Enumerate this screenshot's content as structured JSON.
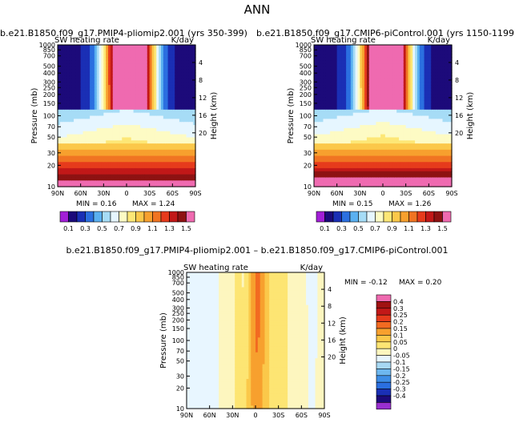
{
  "page_title": "ANN",
  "palette": {
    "base": [
      "#a21fd6",
      "#1c0a7a",
      "#1a2fb5",
      "#2b6fe0",
      "#5ab0f0",
      "#a6dcf6",
      "#e6f6ff",
      "#fdfbc4",
      "#fde776",
      "#fbc84a",
      "#f7a02e",
      "#f07422",
      "#e63b1c",
      "#c21818",
      "#8e1212",
      "#ef6ab0"
    ],
    "diff": [
      "#9a2fd0",
      "#1c0a7a",
      "#1a2fb5",
      "#2b6fe0",
      "#3d8de6",
      "#6db7ef",
      "#a7d8f3",
      "#e8f6ff",
      "#fdf6bf",
      "#fde573",
      "#fbc84a",
      "#f7a02e",
      "#f26a21",
      "#e63b1c",
      "#c21818",
      "#a01212",
      "#ef6ab0"
    ]
  },
  "chart_data": [
    {
      "type": "heatmap",
      "title": "b.e21.B1850.f09_g17.PMIP4-pliomip2.001 (yrs 350-399)",
      "left_label": "SW heating rate",
      "right_label": "K/day",
      "ylabel": "Pressure (mb)",
      "ylabel_right": "Height (km)",
      "x_ticks": [
        "90N",
        "60N",
        "30N",
        "0",
        "30S",
        "60S",
        "90S"
      ],
      "y_ticks": [
        "1000",
        "850",
        "700",
        "500",
        "400",
        "300",
        "250",
        "200",
        "150",
        "100",
        "70",
        "50",
        "30",
        "20",
        "10"
      ],
      "y_ticks_right": [
        "4",
        "8",
        "12",
        "16",
        "20"
      ],
      "min_label": "MIN =",
      "min": "0.16",
      "max_label": "MAX =",
      "max": "1.24",
      "levels": [
        "0.1",
        "0.3",
        "0.5",
        "0.7",
        "0.9",
        "1.1",
        "1.3",
        "1.5"
      ],
      "ylim": [
        1000,
        10
      ],
      "lat_range": [
        90,
        -90
      ]
    },
    {
      "type": "heatmap",
      "title": "b.e21.B1850.f09_g17.CMIP6-piControl.001 (yrs 1150-1199)",
      "left_label": "SW heating rate",
      "right_label": "K/day",
      "ylabel": "Pressure (mb)",
      "ylabel_right": "Height (km)",
      "x_ticks": [
        "90N",
        "60N",
        "30N",
        "0",
        "30S",
        "60S",
        "90S"
      ],
      "y_ticks": [
        "1000",
        "850",
        "700",
        "500",
        "400",
        "300",
        "250",
        "200",
        "150",
        "100",
        "70",
        "50",
        "30",
        "20",
        "10"
      ],
      "y_ticks_right": [
        "4",
        "8",
        "12",
        "16",
        "20"
      ],
      "min_label": "MIN =",
      "min": "0.15",
      "max_label": "MAX =",
      "max": "1.26",
      "levels": [
        "0.1",
        "0.3",
        "0.5",
        "0.7",
        "0.9",
        "1.1",
        "1.3",
        "1.5"
      ],
      "ylim": [
        1000,
        10
      ],
      "lat_range": [
        90,
        -90
      ]
    },
    {
      "type": "heatmap",
      "title": "b.e21.B1850.f09_g17.PMIP4-pliomip2.001 – b.e21.B1850.f09_g17.CMIP6-piControl.001",
      "left_label": "SW heating rate",
      "right_label": "K/day",
      "ylabel": "Pressure (mb)",
      "ylabel_right": "Height (km)",
      "x_ticks": [
        "90N",
        "60N",
        "30N",
        "0",
        "30S",
        "60S",
        "90S"
      ],
      "y_ticks": [
        "1000",
        "850",
        "700",
        "500",
        "400",
        "300",
        "250",
        "200",
        "150",
        "100",
        "70",
        "50",
        "30",
        "20",
        "10"
      ],
      "y_ticks_right": [
        "4",
        "8",
        "12",
        "16",
        "20"
      ],
      "min_label": "MIN =",
      "min": "-0.12",
      "max_label": "MAX =",
      "max": "0.20",
      "levels": [
        "0.4",
        "0.3",
        "0.25",
        "0.2",
        "0.15",
        "0.1",
        "0.05",
        "0",
        "-0.05",
        "-0.1",
        "-0.15",
        "-0.2",
        "-0.25",
        "-0.3",
        "-0.4"
      ],
      "ylim": [
        1000,
        10
      ],
      "lat_range": [
        90,
        -90
      ]
    }
  ]
}
